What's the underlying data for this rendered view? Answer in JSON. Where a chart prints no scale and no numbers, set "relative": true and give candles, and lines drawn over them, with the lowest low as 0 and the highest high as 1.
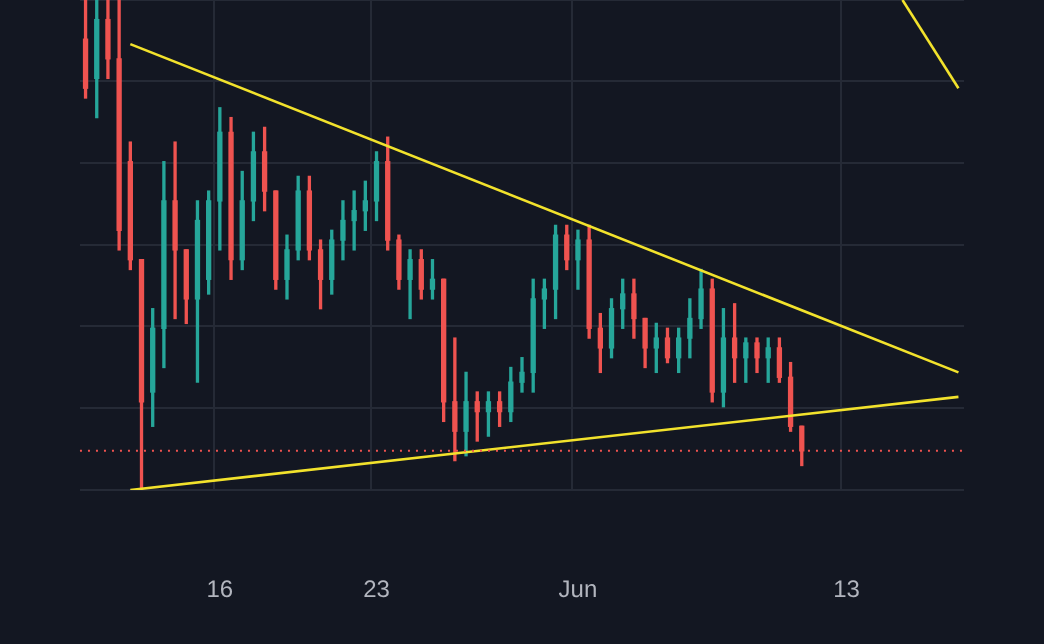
{
  "chart_data": {
    "type": "candlestick",
    "relative": true,
    "grid": true,
    "legend": false,
    "categories": [
      null,
      null,
      null,
      null,
      null,
      null,
      null,
      null,
      null,
      null,
      null,
      null,
      "16",
      null,
      null,
      null,
      null,
      null,
      null,
      null,
      null,
      null,
      null,
      null,
      null,
      null,
      "23",
      null,
      null,
      null,
      null,
      null,
      null,
      null,
      null,
      null,
      null,
      null,
      null,
      null,
      null,
      null,
      null,
      null,
      "Jun",
      null,
      null,
      null,
      null,
      null,
      null,
      null,
      null,
      null,
      null,
      null,
      null,
      null,
      null,
      null,
      null,
      null,
      null,
      null,
      null,
      null,
      null,
      null,
      "13",
      null,
      null,
      null,
      null,
      null,
      null,
      null,
      null,
      null,
      null
    ],
    "ohlc": [
      [
        0.92,
        1,
        0.8,
        0.82
      ],
      [
        0.84,
        1,
        0.76,
        0.96
      ],
      [
        0.96,
        1,
        0.84,
        0.88
      ],
      [
        0.88,
        1,
        0.49,
        0.53
      ],
      [
        0.67,
        0.71,
        0.45,
        0.47
      ],
      [
        0.47,
        0.47,
        0,
        0.18
      ],
      [
        0.2,
        0.37,
        0.13,
        0.33
      ],
      [
        0.33,
        0.67,
        0.25,
        0.59
      ],
      [
        0.59,
        0.71,
        0.35,
        0.49
      ],
      [
        0.49,
        0.49,
        0.34,
        0.39
      ],
      [
        0.39,
        0.59,
        0.22,
        0.55
      ],
      [
        0.43,
        0.61,
        0.4,
        0.59
      ],
      [
        0.59,
        0.78,
        0.49,
        0.73
      ],
      [
        0.73,
        0.76,
        0.43,
        0.47
      ],
      [
        0.47,
        0.65,
        0.45,
        0.59
      ],
      [
        0.59,
        0.73,
        0.55,
        0.69
      ],
      [
        0.69,
        0.74,
        0.57,
        0.61
      ],
      [
        0.61,
        0.61,
        0.41,
        0.43
      ],
      [
        0.43,
        0.52,
        0.39,
        0.49
      ],
      [
        0.49,
        0.64,
        0.47,
        0.61
      ],
      [
        0.61,
        0.64,
        0.47,
        0.49
      ],
      [
        0.49,
        0.51,
        0.37,
        0.43
      ],
      [
        0.43,
        0.53,
        0.4,
        0.51
      ],
      [
        0.51,
        0.59,
        0.47,
        0.55
      ],
      [
        0.55,
        0.61,
        0.49,
        0.57
      ],
      [
        0.57,
        0.63,
        0.53,
        0.59
      ],
      [
        0.59,
        0.69,
        0.55,
        0.67
      ],
      [
        0.67,
        0.72,
        0.49,
        0.51
      ],
      [
        0.51,
        0.52,
        0.41,
        0.43
      ],
      [
        0.43,
        0.49,
        0.35,
        0.47
      ],
      [
        0.47,
        0.49,
        0.39,
        0.41
      ],
      [
        0.41,
        0.47,
        0.39,
        0.43
      ],
      [
        0.43,
        0.43,
        0.14,
        0.18
      ],
      [
        0.18,
        0.31,
        0.06,
        0.12
      ],
      [
        0.12,
        0.24,
        0.07,
        0.18
      ],
      [
        0.18,
        0.2,
        0.1,
        0.16
      ],
      [
        0.16,
        0.2,
        0.11,
        0.18
      ],
      [
        0.18,
        0.2,
        0.13,
        0.16
      ],
      [
        0.16,
        0.25,
        0.14,
        0.22
      ],
      [
        0.22,
        0.27,
        0.2,
        0.24
      ],
      [
        0.24,
        0.43,
        0.2,
        0.39
      ],
      [
        0.39,
        0.43,
        0.33,
        0.41
      ],
      [
        0.41,
        0.54,
        0.35,
        0.52
      ],
      [
        0.52,
        0.54,
        0.45,
        0.47
      ],
      [
        0.47,
        0.53,
        0.41,
        0.51
      ],
      [
        0.51,
        0.54,
        0.31,
        0.33
      ],
      [
        0.33,
        0.36,
        0.24,
        0.29
      ],
      [
        0.29,
        0.39,
        0.27,
        0.37
      ],
      [
        0.37,
        0.43,
        0.33,
        0.4
      ],
      [
        0.4,
        0.43,
        0.31,
        0.35
      ],
      [
        0.35,
        0.35,
        0.25,
        0.29
      ],
      [
        0.29,
        0.34,
        0.24,
        0.31
      ],
      [
        0.31,
        0.33,
        0.26,
        0.27
      ],
      [
        0.27,
        0.33,
        0.24,
        0.31
      ],
      [
        0.31,
        0.39,
        0.27,
        0.35
      ],
      [
        0.35,
        0.45,
        0.33,
        0.41
      ],
      [
        0.41,
        0.43,
        0.18,
        0.2
      ],
      [
        0.2,
        0.37,
        0.17,
        0.31
      ],
      [
        0.31,
        0.38,
        0.22,
        0.27
      ],
      [
        0.27,
        0.31,
        0.22,
        0.3
      ],
      [
        0.3,
        0.31,
        0.24,
        0.27
      ],
      [
        0.27,
        0.31,
        0.22,
        0.29
      ],
      [
        0.29,
        0.31,
        0.22,
        0.23
      ],
      [
        0.23,
        0.26,
        0.12,
        0.13
      ],
      [
        0.13,
        0.13,
        0.05,
        0.08
      ],
      null,
      null,
      null,
      null,
      null,
      null,
      null,
      null,
      null,
      null,
      null,
      null,
      null,
      null
    ],
    "colors": [
      "#ef5350",
      "#26a69a",
      "#ef5350",
      "#ef5350",
      "#ef5350",
      "#ef5350",
      "#26a69a",
      "#26a69a",
      "#ef5350",
      "#ef5350",
      "#26a69a",
      "#26a69a",
      "#26a69a",
      "#ef5350",
      "#26a69a",
      "#26a69a",
      "#ef5350",
      "#ef5350",
      "#26a69a",
      "#26a69a",
      "#ef5350",
      "#ef5350",
      "#26a69a",
      "#26a69a",
      "#26a69a",
      "#26a69a",
      "#26a69a",
      "#ef5350",
      "#ef5350",
      "#26a69a",
      "#ef5350",
      "#26a69a",
      "#ef5350",
      "#ef5350",
      "#26a69a",
      "#ef5350",
      "#26a69a",
      "#ef5350",
      "#26a69a",
      "#26a69a",
      "#26a69a",
      "#26a69a",
      "#26a69a",
      "#ef5350",
      "#26a69a",
      "#ef5350",
      "#ef5350",
      "#26a69a",
      "#26a69a",
      "#ef5350",
      "#ef5350",
      "#26a69a",
      "#ef5350",
      "#26a69a",
      "#26a69a",
      "#26a69a",
      "#ef5350",
      "#26a69a",
      "#ef5350",
      "#26a69a",
      "#ef5350",
      "#26a69a",
      "#ef5350",
      "#ef5350",
      "#ef5350",
      null,
      null,
      null,
      null,
      null,
      null,
      null,
      null,
      null,
      null,
      null,
      null,
      null,
      null
    ],
    "series": [
      {
        "type": "line",
        "color": "#f2e22c",
        "values": [
          null,
          null,
          null,
          null,
          0.91,
          null,
          null,
          null,
          null,
          null,
          null,
          null,
          null,
          null,
          null,
          null,
          null,
          null,
          null,
          null,
          null,
          null,
          null,
          null,
          null,
          null,
          null,
          null,
          null,
          null,
          null,
          null,
          null,
          null,
          null,
          null,
          null,
          null,
          null,
          null,
          null,
          null,
          null,
          null,
          null,
          null,
          null,
          null,
          null,
          null,
          null,
          null,
          null,
          null,
          null,
          null,
          null,
          null,
          null,
          null,
          null,
          null,
          null,
          null,
          null,
          null,
          null,
          null,
          null,
          null,
          null,
          null,
          null,
          null,
          null,
          null,
          null,
          null,
          0.24
        ]
      },
      {
        "type": "line",
        "color": "#f2e22c",
        "values": [
          null,
          null,
          null,
          null,
          0,
          null,
          null,
          null,
          null,
          null,
          null,
          null,
          null,
          null,
          null,
          null,
          null,
          null,
          null,
          null,
          null,
          null,
          null,
          null,
          null,
          null,
          null,
          null,
          null,
          null,
          null,
          null,
          null,
          null,
          null,
          null,
          null,
          null,
          null,
          null,
          null,
          null,
          null,
          null,
          null,
          null,
          null,
          null,
          null,
          null,
          null,
          null,
          null,
          null,
          null,
          null,
          null,
          null,
          null,
          null,
          null,
          null,
          null,
          null,
          null,
          null,
          null,
          null,
          null,
          null,
          null,
          null,
          null,
          null,
          null,
          null,
          null,
          null,
          0.19
        ]
      },
      {
        "type": "line",
        "color": "#f2e22c",
        "values": [
          null,
          null,
          null,
          null,
          null,
          null,
          null,
          null,
          null,
          null,
          null,
          null,
          null,
          null,
          null,
          null,
          null,
          null,
          null,
          null,
          null,
          null,
          null,
          null,
          null,
          null,
          null,
          null,
          null,
          null,
          null,
          null,
          null,
          null,
          null,
          null,
          null,
          null,
          null,
          null,
          null,
          null,
          null,
          null,
          null,
          null,
          null,
          null,
          null,
          null,
          null,
          null,
          null,
          null,
          null,
          null,
          null,
          null,
          null,
          null,
          null,
          null,
          null,
          null,
          null,
          null,
          null,
          null,
          null,
          null,
          null,
          null,
          null,
          1,
          null,
          null,
          null,
          null,
          0.82
        ]
      }
    ],
    "ref_lines": [
      {
        "axis": "y",
        "value": 0.08,
        "color": "#ef5350",
        "line_style": "dotted"
      }
    ]
  }
}
